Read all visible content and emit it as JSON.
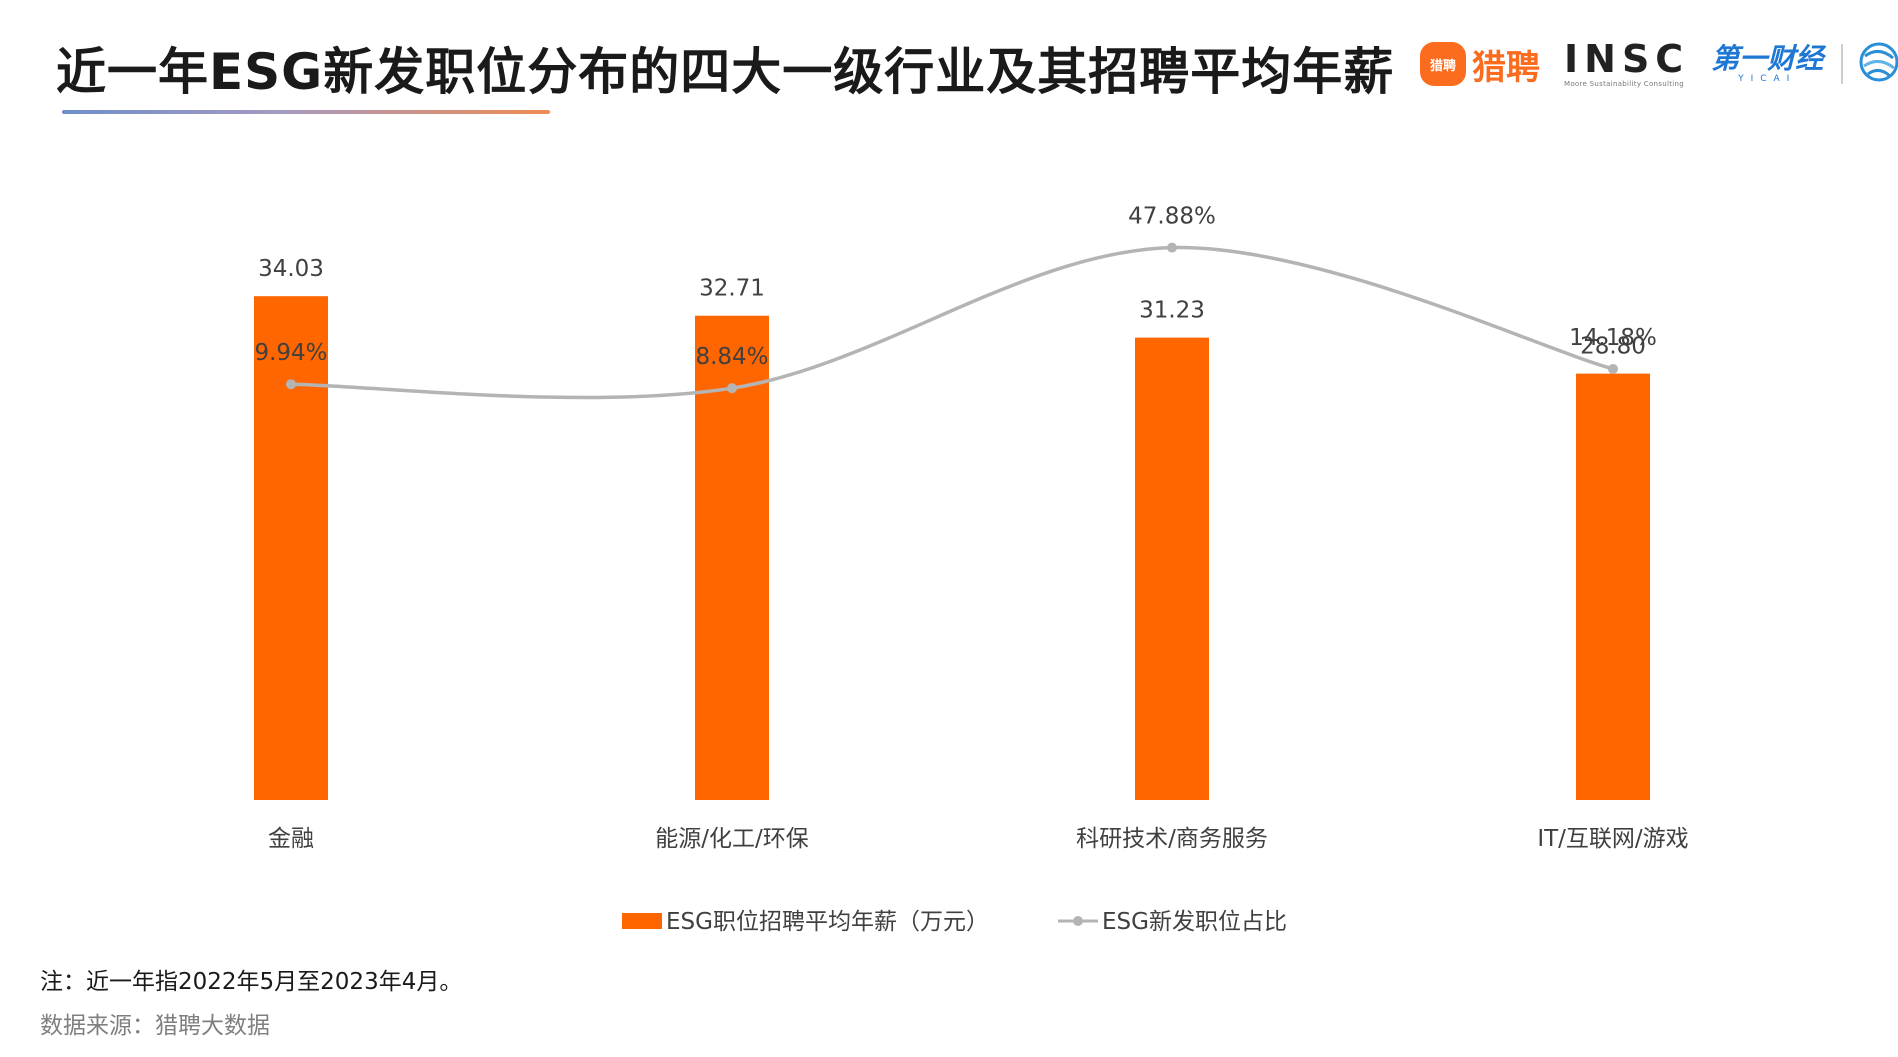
{
  "header": {
    "title": "近一年ESG新发职位分布的四大一级行业及其招聘平均年薪"
  },
  "logos": {
    "liepin_badge": "猎聘",
    "liepin_text": "猎聘",
    "insc_main": "INSC",
    "insc_sub": "Moore Sustainability Consulting",
    "yicai_main": "第一财经",
    "yicai_sub": "YICAI",
    "fund_icon": "globe-swirl-icon"
  },
  "chart_data": {
    "type": "bar",
    "categories": [
      "金融",
      "能源/化工/环保",
      "科研技术/商务服务",
      "IT/互联网/游戏"
    ],
    "series": [
      {
        "name": "ESG职位招聘平均年薪（万元）",
        "type": "bar",
        "values": [
          34.03,
          32.71,
          31.23,
          28.8
        ],
        "labels": [
          "34.03",
          "32.71",
          "31.23",
          "28.80"
        ],
        "color": "#ff6600"
      },
      {
        "name": "ESG新发职位占比",
        "type": "line",
        "values": [
          9.94,
          8.84,
          47.88,
          14.18
        ],
        "labels": [
          "9.94%",
          "8.84%",
          "47.88%",
          "14.18%"
        ],
        "color": "#b4b4b4",
        "smooth": true
      }
    ],
    "title": "",
    "xlabel": "",
    "ylabel": "",
    "grid": false,
    "legend_position": "bottom"
  },
  "footer": {
    "note": "注：近一年指2022年5月至2023年4月。",
    "source": "数据来源：猎聘大数据"
  }
}
